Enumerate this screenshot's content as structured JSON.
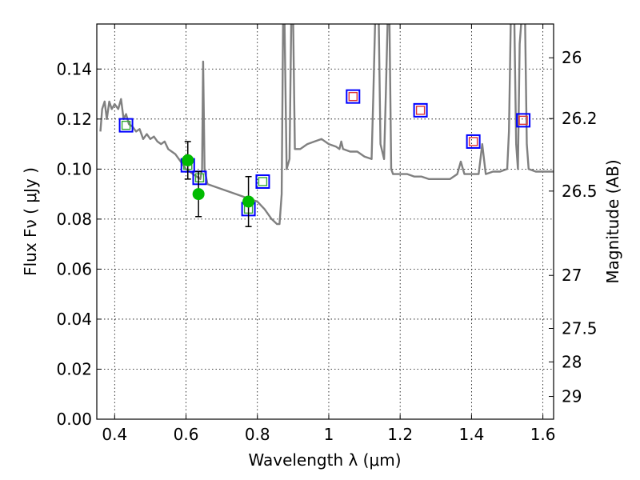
{
  "chart_data": {
    "type": "scatter",
    "xlabel": "Wavelength  λ (μm)",
    "ylabel_left": "Flux  Fν  ( μJy )",
    "ylabel_right": "Magnitude (AB)",
    "xlim": [
      0.35,
      1.63
    ],
    "ylim": [
      0.0,
      0.158
    ],
    "grid": true,
    "x_ticks": [
      0.4,
      0.6,
      0.8,
      1.0,
      1.2,
      1.4,
      1.6
    ],
    "x_tick_labels": [
      "0.4",
      "0.6",
      "0.8",
      "1",
      "1.2",
      "1.4",
      "1.6"
    ],
    "y_ticks": [
      0.0,
      0.02,
      0.04,
      0.06,
      0.08,
      0.1,
      0.12,
      0.14
    ],
    "y_tick_labels": [
      "0.00",
      "0.02",
      "0.04",
      "0.06",
      "0.08",
      "0.10",
      "0.12",
      "0.14"
    ],
    "right_ticks": [
      {
        "label": "26",
        "flux": 0.1445
      },
      {
        "label": "26.2",
        "flux": 0.1202
      },
      {
        "label": "26.5",
        "flux": 0.0912
      },
      {
        "label": "27",
        "flux": 0.0575
      },
      {
        "label": "27.5",
        "flux": 0.0363
      },
      {
        "label": "28",
        "flux": 0.0229
      },
      {
        "label": "29",
        "flux": 0.0091
      }
    ],
    "series": [
      {
        "kind": "sed-model-line",
        "color": "#808080",
        "points": [
          [
            0.36,
            0.115
          ],
          [
            0.365,
            0.124
          ],
          [
            0.372,
            0.127
          ],
          [
            0.378,
            0.12
          ],
          [
            0.385,
            0.127
          ],
          [
            0.392,
            0.124
          ],
          [
            0.4,
            0.126
          ],
          [
            0.41,
            0.124
          ],
          [
            0.418,
            0.128
          ],
          [
            0.425,
            0.12
          ],
          [
            0.432,
            0.122
          ],
          [
            0.44,
            0.118
          ],
          [
            0.45,
            0.117
          ],
          [
            0.46,
            0.115
          ],
          [
            0.47,
            0.116
          ],
          [
            0.48,
            0.112
          ],
          [
            0.49,
            0.114
          ],
          [
            0.5,
            0.112
          ],
          [
            0.51,
            0.113
          ],
          [
            0.52,
            0.111
          ],
          [
            0.53,
            0.11
          ],
          [
            0.54,
            0.111
          ],
          [
            0.55,
            0.108
          ],
          [
            0.56,
            0.107
          ],
          [
            0.57,
            0.106
          ],
          [
            0.58,
            0.104
          ],
          [
            0.59,
            0.102
          ],
          [
            0.6,
            0.1
          ],
          [
            0.61,
            0.099
          ],
          [
            0.62,
            0.098
          ],
          [
            0.63,
            0.097
          ],
          [
            0.64,
            0.096
          ],
          [
            0.645,
            0.1
          ],
          [
            0.648,
            0.143
          ],
          [
            0.652,
            0.1
          ],
          [
            0.66,
            0.094
          ],
          [
            0.68,
            0.093
          ],
          [
            0.7,
            0.092
          ],
          [
            0.72,
            0.091
          ],
          [
            0.74,
            0.09
          ],
          [
            0.76,
            0.089
          ],
          [
            0.78,
            0.088
          ],
          [
            0.8,
            0.087
          ],
          [
            0.82,
            0.084
          ],
          [
            0.84,
            0.08
          ],
          [
            0.855,
            0.078
          ],
          [
            0.862,
            0.078
          ],
          [
            0.868,
            0.09
          ],
          [
            0.872,
            0.16
          ],
          [
            0.876,
            0.16
          ],
          [
            0.882,
            0.1
          ],
          [
            0.89,
            0.104
          ],
          [
            0.895,
            0.16
          ],
          [
            0.9,
            0.16
          ],
          [
            0.905,
            0.108
          ],
          [
            0.92,
            0.108
          ],
          [
            0.94,
            0.11
          ],
          [
            0.96,
            0.111
          ],
          [
            0.98,
            0.112
          ],
          [
            1.0,
            0.11
          ],
          [
            1.02,
            0.109
          ],
          [
            1.03,
            0.108
          ],
          [
            1.035,
            0.111
          ],
          [
            1.04,
            0.108
          ],
          [
            1.06,
            0.107
          ],
          [
            1.08,
            0.107
          ],
          [
            1.1,
            0.105
          ],
          [
            1.12,
            0.104
          ],
          [
            1.125,
            0.13
          ],
          [
            1.13,
            0.16
          ],
          [
            1.14,
            0.16
          ],
          [
            1.145,
            0.11
          ],
          [
            1.155,
            0.104
          ],
          [
            1.16,
            0.13
          ],
          [
            1.165,
            0.16
          ],
          [
            1.17,
            0.16
          ],
          [
            1.175,
            0.1
          ],
          [
            1.18,
            0.098
          ],
          [
            1.2,
            0.098
          ],
          [
            1.22,
            0.098
          ],
          [
            1.24,
            0.097
          ],
          [
            1.26,
            0.097
          ],
          [
            1.28,
            0.096
          ],
          [
            1.3,
            0.096
          ],
          [
            1.32,
            0.096
          ],
          [
            1.34,
            0.096
          ],
          [
            1.36,
            0.098
          ],
          [
            1.37,
            0.103
          ],
          [
            1.38,
            0.098
          ],
          [
            1.4,
            0.098
          ],
          [
            1.42,
            0.098
          ],
          [
            1.43,
            0.11
          ],
          [
            1.44,
            0.098
          ],
          [
            1.46,
            0.099
          ],
          [
            1.48,
            0.099
          ],
          [
            1.5,
            0.1
          ],
          [
            1.505,
            0.115
          ],
          [
            1.51,
            0.16
          ],
          [
            1.52,
            0.16
          ],
          [
            1.525,
            0.11
          ],
          [
            1.53,
            0.1
          ],
          [
            1.535,
            0.15
          ],
          [
            1.54,
            0.16
          ],
          [
            1.55,
            0.16
          ],
          [
            1.555,
            0.11
          ],
          [
            1.56,
            0.1
          ],
          [
            1.58,
            0.099
          ],
          [
            1.6,
            0.099
          ],
          [
            1.63,
            0.099
          ]
        ]
      },
      {
        "kind": "observed",
        "marker": "filled-circle",
        "color": "#00bb00",
        "points": [
          {
            "x": 0.605,
            "y": 0.1035,
            "err": 0.0075
          },
          {
            "x": 0.635,
            "y": 0.09,
            "err": 0.009
          },
          {
            "x": 0.775,
            "y": 0.087,
            "err": 0.01
          }
        ]
      },
      {
        "kind": "model-photometry-optical",
        "marker": "open-square",
        "edge_color": "#0000ff",
        "inner_color": "#33aa33",
        "points": [
          {
            "x": 0.432,
            "y": 0.1175
          },
          {
            "x": 0.605,
            "y": 0.1015
          },
          {
            "x": 0.638,
            "y": 0.0965
          },
          {
            "x": 0.775,
            "y": 0.084
          },
          {
            "x": 0.815,
            "y": 0.095
          }
        ]
      },
      {
        "kind": "model-photometry-ir",
        "marker": "open-square",
        "edge_color": "#0000ff",
        "inner_color": "#dd3333",
        "points": [
          {
            "x": 1.068,
            "y": 0.129
          },
          {
            "x": 1.257,
            "y": 0.1235
          },
          {
            "x": 1.405,
            "y": 0.111
          },
          {
            "x": 1.545,
            "y": 0.1195
          }
        ]
      }
    ]
  }
}
